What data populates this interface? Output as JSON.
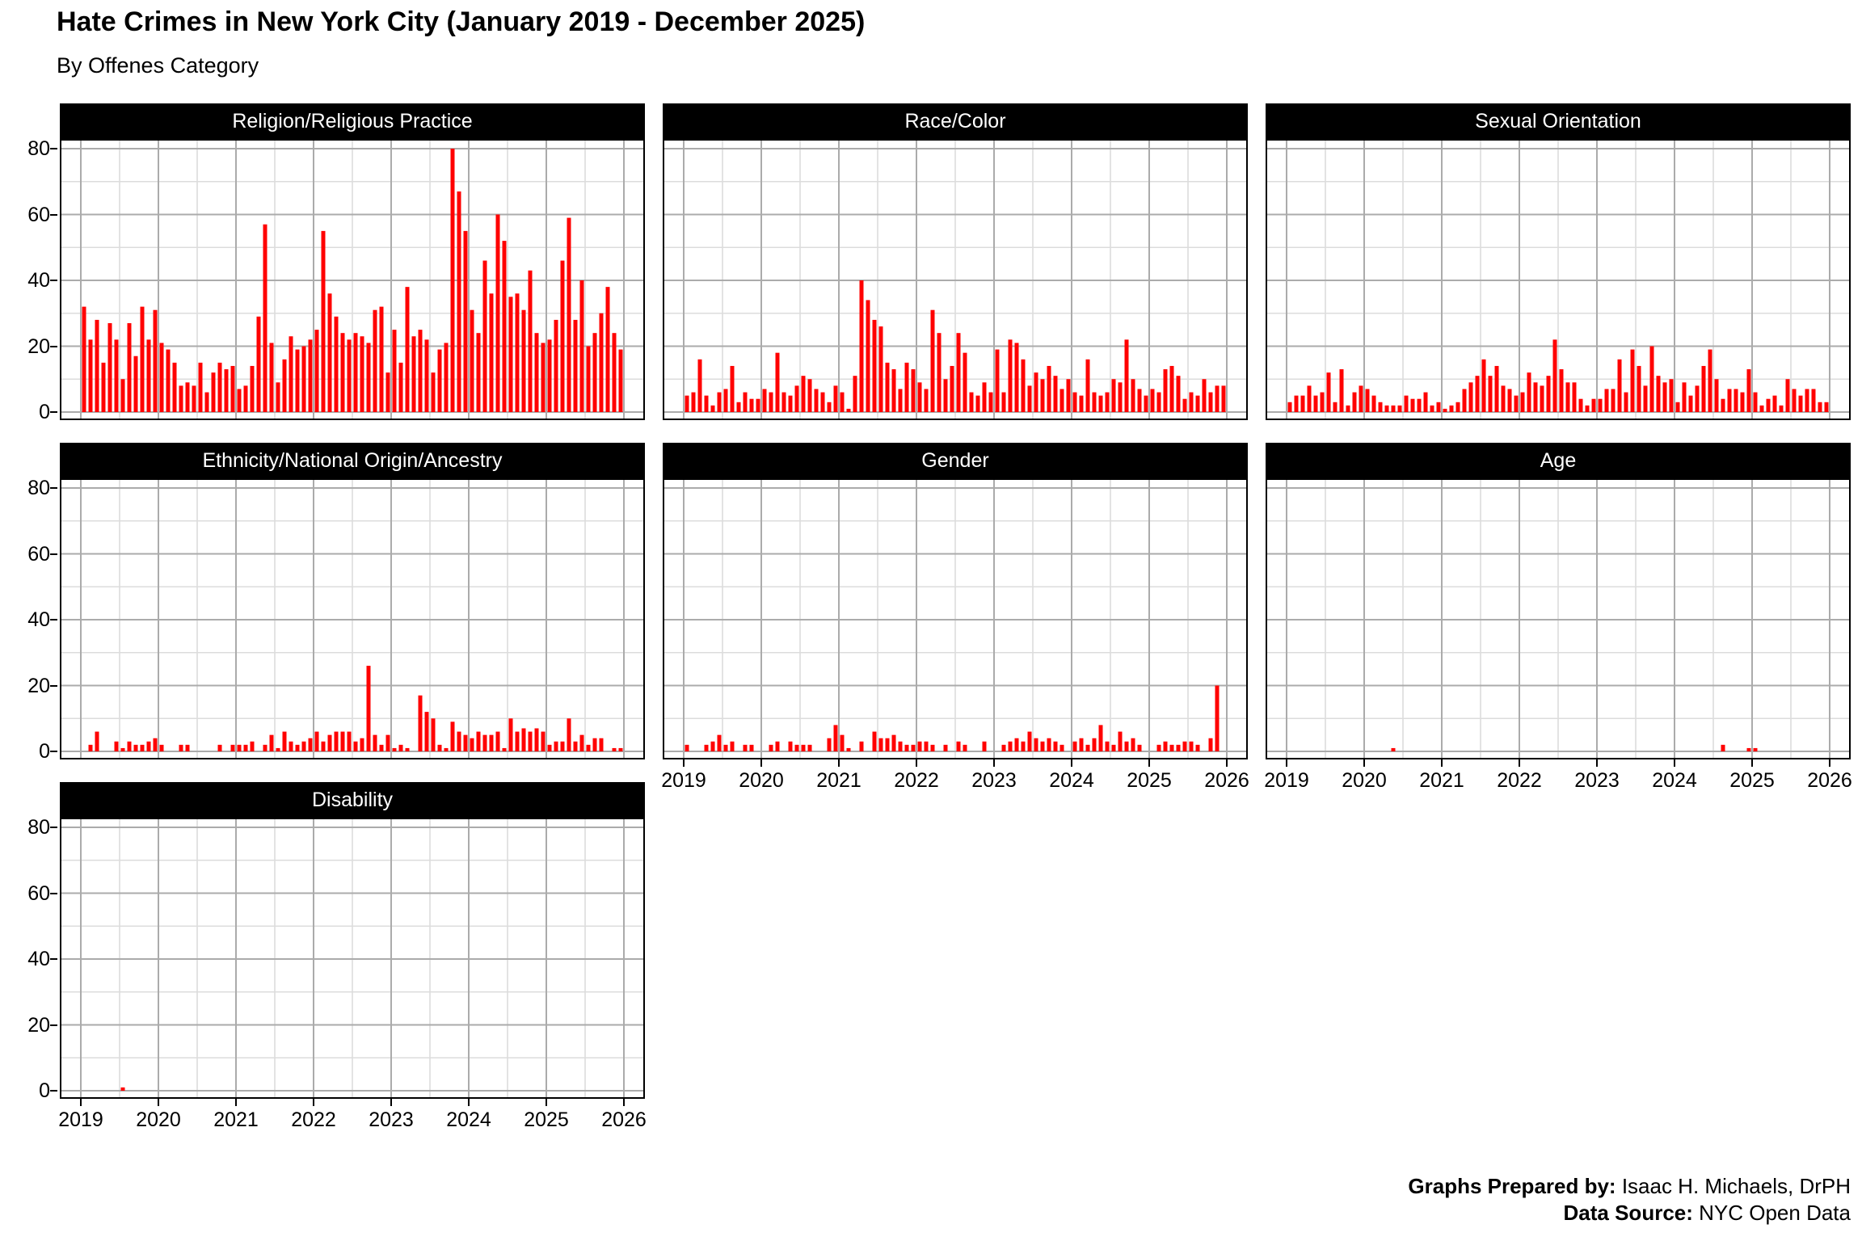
{
  "page": {
    "title": "Hate Crimes in New York City (January 2019 - December 2025)",
    "subtitle": "By Offenes Category"
  },
  "footer": {
    "prepared_by_label": "Graphs Prepared by:",
    "prepared_by_value": " Isaac H. Michaels, DrPH",
    "source_label": "Data Source:",
    "source_value": " NYC Open Data"
  },
  "axes": {
    "y_ticks": [
      "80",
      "60",
      "40",
      "20",
      "0"
    ],
    "x_ticks": [
      "2019",
      "2020",
      "2021",
      "2022",
      "2023",
      "2024",
      "2025",
      "2026"
    ]
  },
  "style": {
    "bar_color": "#FF0000",
    "strip_bg": "#000000",
    "strip_text": "#FFFFFF",
    "grid_major": "#ABABAB",
    "grid_minor": "#DCDCDC",
    "panel_border": "#000000",
    "background": "#FFFFFF"
  },
  "chart_data": {
    "type": "bar",
    "title": "Hate Crimes in New York City (January 2019 - December 2025)",
    "subtitle": "By Offenes Category",
    "x_unit": "month",
    "time_start": "2019-01",
    "time_end": "2025-12",
    "x_axis_range": [
      2019,
      2026
    ],
    "ylim": [
      0,
      84
    ],
    "y_major_step": 20,
    "y_minor_step": 10,
    "grid": "on",
    "legend": "none",
    "facet_layout_columns": 3,
    "panels": [
      {
        "title": "Religion/Religious Practice",
        "values": [
          32,
          22,
          28,
          15,
          27,
          22,
          10,
          27,
          17,
          32,
          22,
          31,
          21,
          19,
          15,
          8,
          9,
          8,
          15,
          6,
          12,
          15,
          13,
          14,
          7,
          8,
          14,
          29,
          57,
          21,
          9,
          16,
          23,
          19,
          20,
          22,
          25,
          55,
          36,
          29,
          24,
          22,
          24,
          23,
          21,
          31,
          32,
          12,
          25,
          15,
          38,
          23,
          25,
          22,
          12,
          19,
          21,
          80,
          67,
          55,
          31,
          24,
          46,
          36,
          60,
          52,
          35,
          36,
          31,
          43,
          24,
          21,
          22,
          28,
          46,
          59,
          28,
          40,
          20,
          24,
          30,
          38,
          24,
          19
        ]
      },
      {
        "title": "Race/Color",
        "values": [
          5,
          6,
          16,
          5,
          2,
          6,
          7,
          14,
          3,
          6,
          4,
          4,
          7,
          6,
          18,
          6,
          5,
          8,
          11,
          10,
          7,
          6,
          3,
          8,
          6,
          1,
          11,
          40,
          34,
          28,
          26,
          15,
          13,
          7,
          15,
          13,
          9,
          7,
          31,
          24,
          10,
          14,
          24,
          18,
          6,
          5,
          9,
          6,
          19,
          6,
          22,
          21,
          16,
          8,
          12,
          10,
          14,
          11,
          7,
          10,
          6,
          5,
          16,
          6,
          5,
          6,
          10,
          9,
          22,
          10,
          7,
          5,
          7,
          6,
          13,
          14,
          11,
          4,
          6,
          5,
          10,
          6,
          8,
          8
        ]
      },
      {
        "title": "Sexual Orientation",
        "values": [
          3,
          5,
          5,
          8,
          5,
          6,
          12,
          3,
          13,
          2,
          6,
          8,
          7,
          5,
          3,
          2,
          2,
          2,
          5,
          4,
          4,
          6,
          2,
          3,
          1,
          2,
          3,
          7,
          9,
          11,
          16,
          11,
          14,
          8,
          7,
          5,
          6,
          12,
          9,
          8,
          11,
          22,
          13,
          9,
          9,
          4,
          2,
          4,
          4,
          7,
          7,
          16,
          6,
          19,
          14,
          8,
          20,
          11,
          9,
          10,
          3,
          9,
          5,
          8,
          14,
          19,
          10,
          4,
          7,
          7,
          6,
          13,
          6,
          2,
          4,
          5,
          2,
          10,
          7,
          5,
          7,
          7,
          3,
          3
        ]
      },
      {
        "title": "Ethnicity/National Origin/Ancestry",
        "values": [
          0,
          2,
          6,
          0,
          0,
          3,
          1,
          3,
          2,
          2,
          3,
          4,
          2,
          0,
          0,
          2,
          2,
          0,
          0,
          0,
          0,
          2,
          0,
          2,
          2,
          2,
          3,
          0,
          2,
          5,
          1,
          6,
          3,
          2,
          3,
          4,
          6,
          3,
          5,
          6,
          6,
          6,
          3,
          4,
          26,
          5,
          2,
          5,
          1,
          2,
          1,
          0,
          17,
          12,
          10,
          2,
          1,
          9,
          6,
          5,
          4,
          6,
          5,
          5,
          6,
          1,
          10,
          6,
          7,
          6,
          7,
          6,
          2,
          3,
          3,
          10,
          3,
          5,
          2,
          4,
          4,
          0,
          1,
          1
        ]
      },
      {
        "title": "Gender",
        "values": [
          2,
          0,
          0,
          2,
          3,
          5,
          2,
          3,
          0,
          2,
          2,
          0,
          0,
          2,
          3,
          0,
          3,
          2,
          2,
          2,
          0,
          0,
          4,
          8,
          5,
          1,
          0,
          3,
          0,
          6,
          4,
          4,
          5,
          3,
          2,
          2,
          3,
          3,
          2,
          0,
          2,
          0,
          3,
          2,
          0,
          0,
          3,
          0,
          0,
          2,
          3,
          4,
          3,
          6,
          4,
          3,
          4,
          3,
          2,
          0,
          3,
          4,
          2,
          4,
          8,
          3,
          2,
          6,
          3,
          4,
          2,
          0,
          0,
          2,
          3,
          2,
          2,
          3,
          3,
          2,
          0,
          4,
          20,
          0
        ]
      },
      {
        "title": "Age",
        "values": [
          0,
          0,
          0,
          0,
          0,
          0,
          0,
          0,
          0,
          0,
          0,
          0,
          0,
          0,
          0,
          0,
          1,
          0,
          0,
          0,
          0,
          0,
          0,
          0,
          0,
          0,
          0,
          0,
          0,
          0,
          0,
          0,
          0,
          0,
          0,
          0,
          0,
          0,
          0,
          0,
          0,
          0,
          0,
          0,
          0,
          0,
          0,
          0,
          0,
          0,
          0,
          0,
          0,
          0,
          0,
          0,
          0,
          0,
          0,
          0,
          0,
          0,
          0,
          0,
          0,
          0,
          0,
          2,
          0,
          0,
          0,
          1,
          1,
          0,
          0,
          0,
          0,
          0,
          0,
          0,
          0,
          0,
          0,
          0
        ]
      },
      {
        "title": "Disability",
        "values": [
          0,
          0,
          0,
          0,
          0,
          0,
          1,
          0,
          0,
          0,
          0,
          0,
          0,
          0,
          0,
          0,
          0,
          0,
          0,
          0,
          0,
          0,
          0,
          0,
          0,
          0,
          0,
          0,
          0,
          0,
          0,
          0,
          0,
          0,
          0,
          0,
          0,
          0,
          0,
          0,
          0,
          0,
          0,
          0,
          0,
          0,
          0,
          0,
          0,
          0,
          0,
          0,
          0,
          0,
          0,
          0,
          0,
          0,
          0,
          0,
          0,
          0,
          0,
          0,
          0,
          0,
          0,
          0,
          0,
          0,
          0,
          0,
          0,
          0,
          0,
          0,
          0,
          0,
          0,
          0,
          0,
          0,
          0,
          0
        ]
      }
    ]
  }
}
